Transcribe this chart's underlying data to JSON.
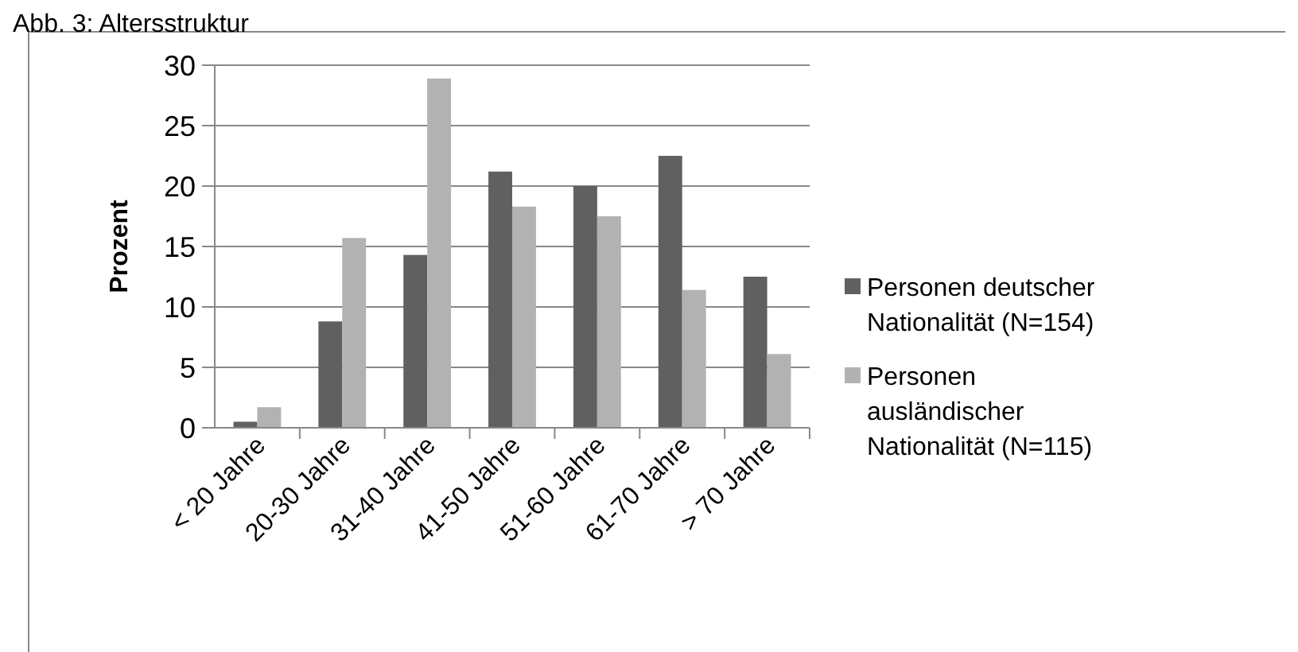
{
  "chart_data": {
    "type": "bar",
    "title": "Abb. 3: Altersstruktur",
    "ylabel": "Prozent",
    "categories": [
      "< 20 Jahre",
      "20-30 Jahre",
      "31-40 Jahre",
      "41-50 Jahre",
      "51-60 Jahre",
      "61-70 Jahre",
      "> 70 Jahre"
    ],
    "series": [
      {
        "name": "Personen deutscher Nationalität (N=154)",
        "color": "#606060",
        "values": [
          0.5,
          8.8,
          14.3,
          21.2,
          20.0,
          22.5,
          12.5
        ]
      },
      {
        "name": "Personen ausländischer Nationalität (N=115)",
        "color": "#b2b2b2",
        "values": [
          1.7,
          15.7,
          28.9,
          18.3,
          17.5,
          11.4,
          6.1
        ]
      }
    ],
    "ylim": [
      0,
      30
    ],
    "yticks": [
      0,
      5,
      10,
      15,
      20,
      25,
      30
    ],
    "grid": "y",
    "legend": "right"
  }
}
